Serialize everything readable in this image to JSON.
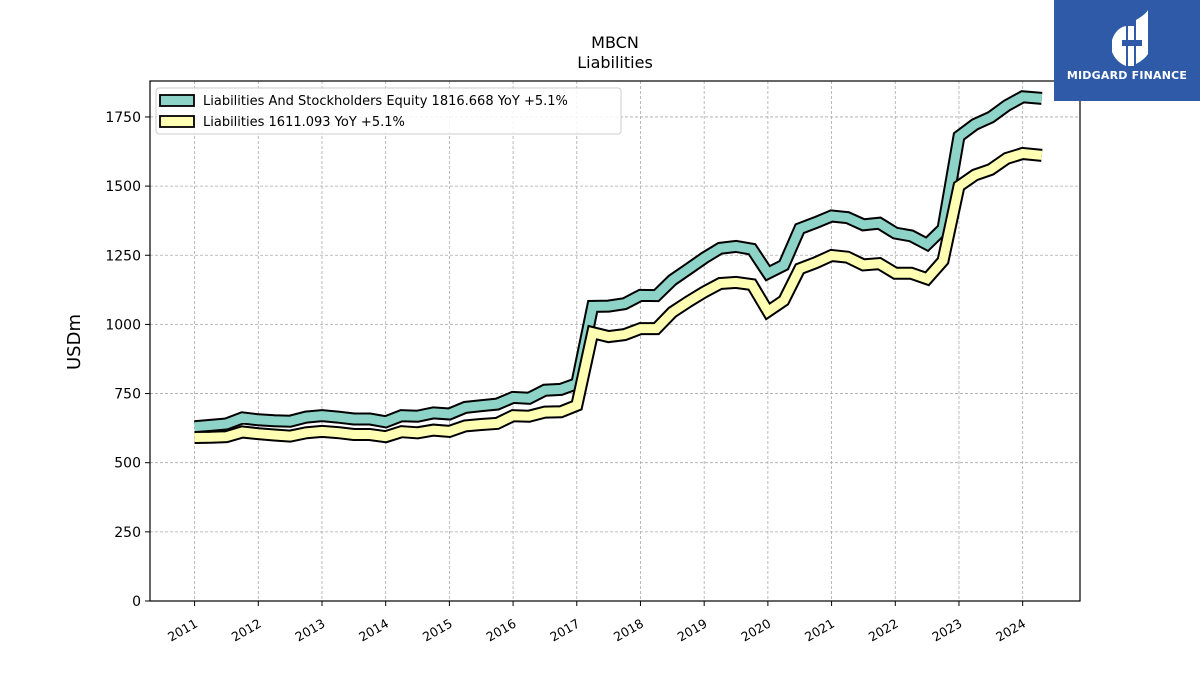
{
  "chart_data": {
    "type": "line",
    "title": "MBCN",
    "subtitle": "Liabilities",
    "xlabel": "",
    "ylabel": "USDm",
    "ylim": [
      0,
      1880
    ],
    "xlim": [
      2010.3,
      2024.9
    ],
    "yticks": [
      0,
      250,
      500,
      750,
      1000,
      1250,
      1500,
      1750
    ],
    "xticks": [
      "2011",
      "2012",
      "2013",
      "2014",
      "2015",
      "2016",
      "2017",
      "2018",
      "2019",
      "2020",
      "2021",
      "2022",
      "2023",
      "2024"
    ],
    "grid": true,
    "legend_position": "top-left",
    "series": [
      {
        "name": "Liabilities And Stockholders Equity",
        "legend_label": "Liabilities And Stockholders Equity  1816.668 YoY +5.1%",
        "color": "#8dd3c7",
        "x": [
          2011.0,
          2011.25,
          2011.5,
          2011.75,
          2012.0,
          2012.25,
          2012.5,
          2012.75,
          2013.0,
          2013.25,
          2013.5,
          2013.75,
          2014.0,
          2014.25,
          2014.5,
          2014.75,
          2015.0,
          2015.25,
          2015.5,
          2015.75,
          2016.0,
          2016.25,
          2016.5,
          2016.75,
          2017.0,
          2017.25,
          2017.5,
          2017.75,
          2018.0,
          2018.25,
          2018.5,
          2018.75,
          2019.0,
          2019.25,
          2019.5,
          2019.75,
          2020.0,
          2020.25,
          2020.5,
          2020.75,
          2021.0,
          2021.25,
          2021.5,
          2021.75,
          2022.0,
          2022.25,
          2022.5,
          2022.75,
          2023.0,
          2023.25,
          2023.5,
          2023.75,
          2024.0,
          2024.3
        ],
        "values": [
          630,
          635,
          640,
          662,
          655,
          652,
          650,
          665,
          670,
          665,
          658,
          658,
          648,
          670,
          668,
          680,
          676,
          700,
          706,
          712,
          736,
          733,
          762,
          765,
          786,
          1065,
          1066,
          1075,
          1105,
          1104,
          1160,
          1200,
          1240,
          1275,
          1282,
          1272,
          1185,
          1214,
          1346,
          1368,
          1392,
          1386,
          1360,
          1366,
          1330,
          1320,
          1290,
          1346,
          1680,
          1723,
          1749,
          1791,
          1823,
          1817
        ]
      },
      {
        "name": "Liabilities",
        "legend_label": "Liabilities  1611.093 YoY +5.1%",
        "color": "#ffffb3",
        "x": [
          2011.0,
          2011.25,
          2011.5,
          2011.75,
          2012.0,
          2012.25,
          2012.5,
          2012.75,
          2013.0,
          2013.25,
          2013.5,
          2013.75,
          2014.0,
          2014.25,
          2014.5,
          2014.75,
          2015.0,
          2015.25,
          2015.5,
          2015.75,
          2016.0,
          2016.25,
          2016.5,
          2016.75,
          2017.0,
          2017.25,
          2017.5,
          2017.75,
          2018.0,
          2018.25,
          2018.5,
          2018.75,
          2019.0,
          2019.25,
          2019.5,
          2019.75,
          2020.0,
          2020.25,
          2020.5,
          2020.75,
          2021.0,
          2021.25,
          2021.5,
          2021.75,
          2022.0,
          2022.25,
          2022.5,
          2022.75,
          2023.0,
          2023.25,
          2023.5,
          2023.75,
          2024.0,
          2024.3
        ],
        "values": [
          591,
          592,
          594,
          611,
          605,
          600,
          596,
          608,
          613,
          609,
          602,
          602,
          594,
          612,
          608,
          618,
          613,
          633,
          638,
          642,
          670,
          668,
          683,
          684,
          707,
          970,
          956,
          963,
          985,
          985,
          1044,
          1082,
          1117,
          1148,
          1152,
          1144,
          1047,
          1086,
          1201,
          1223,
          1249,
          1243,
          1215,
          1220,
          1185,
          1185,
          1165,
          1230,
          1500,
          1540,
          1560,
          1600,
          1618,
          1611
        ]
      }
    ]
  },
  "logo": {
    "text": "MIDGARD FINANCE",
    "background": "#2e5aa8"
  }
}
